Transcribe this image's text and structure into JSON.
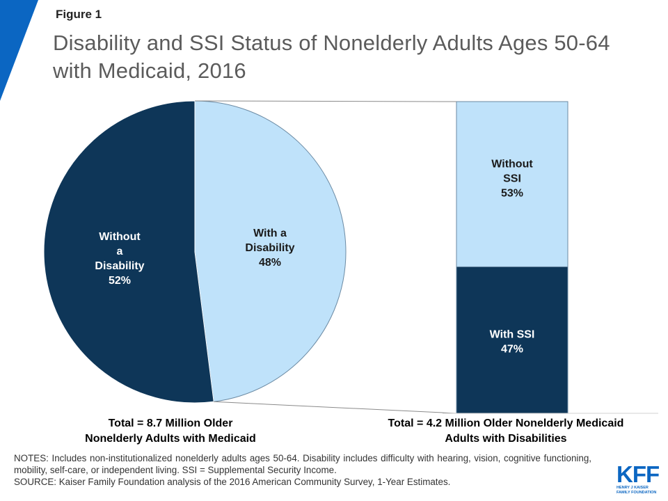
{
  "figure_label": "Figure 1",
  "title": "Disability and SSI Status of Nonelderly Adults Ages 50-64 with Medicaid, 2016",
  "colors": {
    "dark": "#0e3658",
    "light": "#bfe2fa",
    "accent": "#0b66c2"
  },
  "chart_data": [
    {
      "type": "pie",
      "slices": [
        {
          "label_lines": [
            "With a",
            "Disability"
          ],
          "value": 48,
          "value_label": "48%"
        },
        {
          "label_lines": [
            "Without",
            "a",
            "Disability"
          ],
          "value": 52,
          "value_label": "52%"
        }
      ],
      "total_lines": [
        "Total = 8.7 Million Older",
        "Nonelderly Adults with Medicaid"
      ]
    },
    {
      "type": "bar",
      "stacked": true,
      "segments": [
        {
          "label_lines": [
            "With SSI"
          ],
          "value": 47,
          "value_label": "47%"
        },
        {
          "label_lines": [
            "Without",
            "SSI"
          ],
          "value": 53,
          "value_label": "53%"
        }
      ],
      "total_lines": [
        "Total = 4.2 Million Older Nonelderly Medicaid",
        "Adults with Disabilities"
      ]
    }
  ],
  "notes": "NOTES: Includes non-institutionalized nonelderly adults ages 50-64. Disability includes difficulty with hearing, vision, cognitive functioning, mobility, self-care, or independent living. SSI = Supplemental Security Income.",
  "source": "SOURCE: Kaiser Family Foundation analysis of the 2016 American Community Survey, 1-Year Estimates.",
  "logo": {
    "text": "KFF",
    "line1": "HENRY J KAISER",
    "line2": "FAMILY FOUNDATION"
  }
}
